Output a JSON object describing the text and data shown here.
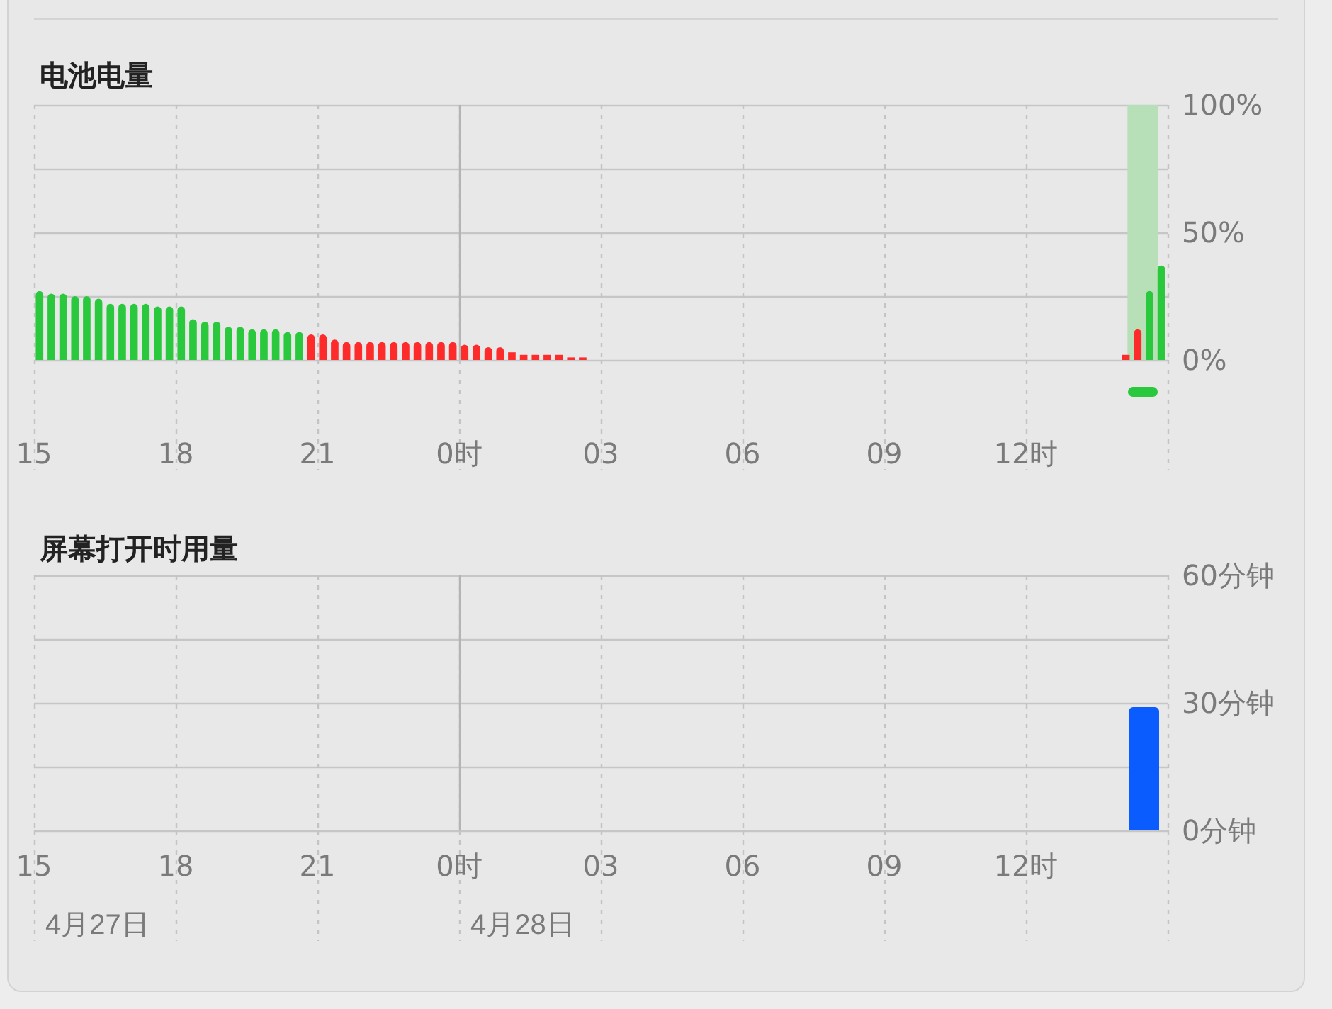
{
  "chart_data": [
    {
      "type": "bar",
      "title": "电池电量",
      "x": [
        "--04-27T15:07",
        "--04-27T15:22",
        "--04-27T15:37",
        "--04-27T15:52",
        "--04-27T16:07",
        "--04-27T16:22",
        "--04-27T16:37",
        "--04-27T16:52",
        "--04-27T17:07",
        "--04-27T17:22",
        "--04-27T17:37",
        "--04-27T17:52",
        "--04-27T18:07",
        "--04-27T18:22",
        "--04-27T18:37",
        "--04-27T18:52",
        "--04-27T19:07",
        "--04-27T19:22",
        "--04-27T19:37",
        "--04-27T19:52",
        "--04-27T20:07",
        "--04-27T20:22",
        "--04-27T20:37",
        "--04-27T20:52",
        "--04-27T21:07",
        "--04-27T21:22",
        "--04-27T21:37",
        "--04-27T21:52",
        "--04-27T22:07",
        "--04-27T22:22",
        "--04-27T22:37",
        "--04-27T22:52",
        "--04-27T23:07",
        "--04-27T23:22",
        "--04-27T23:37",
        "--04-27T23:52",
        "--04-28T00:07",
        "--04-28T00:22",
        "--04-28T00:37",
        "--04-28T00:52",
        "--04-28T01:07",
        "--04-28T01:22",
        "--04-28T01:37",
        "--04-28T01:52",
        "--04-28T02:07",
        "--04-28T02:22",
        "--04-28T02:37",
        "--04-28T14:07",
        "--04-28T14:22",
        "--04-28T14:37",
        "--04-28T14:52"
      ],
      "values": [
        27,
        26,
        26,
        25,
        25,
        24,
        22,
        22,
        22,
        22,
        21,
        21,
        21,
        16,
        15,
        15,
        13,
        13,
        12,
        12,
        12,
        11,
        11,
        10,
        10,
        8,
        7,
        7,
        7,
        7,
        7,
        7,
        7,
        7,
        7,
        7,
        6,
        6,
        5,
        5,
        3,
        2,
        2,
        2,
        2,
        1,
        1,
        2,
        12,
        27,
        37
      ],
      "colors": [
        "#2ac83c",
        "#2ac83c",
        "#2ac83c",
        "#2ac83c",
        "#2ac83c",
        "#2ac83c",
        "#2ac83c",
        "#2ac83c",
        "#2ac83c",
        "#2ac83c",
        "#2ac83c",
        "#2ac83c",
        "#2ac83c",
        "#2ac83c",
        "#2ac83c",
        "#2ac83c",
        "#2ac83c",
        "#2ac83c",
        "#2ac83c",
        "#2ac83c",
        "#2ac83c",
        "#2ac83c",
        "#2ac83c",
        "#fe2b2b",
        "#fe2b2b",
        "#fe2b2b",
        "#fe2b2b",
        "#fe2b2b",
        "#fe2b2b",
        "#fe2b2b",
        "#fe2b2b",
        "#fe2b2b",
        "#fe2b2b",
        "#fe2b2b",
        "#fe2b2b",
        "#fe2b2b",
        "#fe2b2b",
        "#fe2b2b",
        "#fe2b2b",
        "#fe2b2b",
        "#fe2b2b",
        "#fe2b2b",
        "#fe2b2b",
        "#fe2b2b",
        "#fe2b2b",
        "#fe2b2b",
        "#fe2b2b",
        "#fe2b2b",
        "#fe2b2b",
        "#2ac83c",
        "#2ac83c"
      ],
      "xlim": [
        "--04-27T15:00",
        "--04-28T15:00"
      ],
      "xticks": [
        {
          "value": "--04-27T15:00",
          "label": "15"
        },
        {
          "value": "--04-27T18:00",
          "label": "18"
        },
        {
          "value": "--04-27T21:00",
          "label": "21"
        },
        {
          "value": "--04-28T00:00",
          "label": "0时"
        },
        {
          "value": "--04-28T03:00",
          "label": "03"
        },
        {
          "value": "--04-28T06:00",
          "label": "06"
        },
        {
          "value": "--04-28T09:00",
          "label": "09"
        },
        {
          "value": "--04-28T12:00",
          "label": "12时"
        },
        {
          "value": "--04-28T15:00",
          "label": null
        }
      ],
      "ylim": [
        0,
        100
      ],
      "yticks": [
        {
          "value": 0,
          "label": "0%"
        },
        {
          "value": 25,
          "label": null
        },
        {
          "value": 50,
          "label": "50%"
        },
        {
          "value": 75,
          "label": null
        },
        {
          "value": 100,
          "label": "100%"
        }
      ],
      "grid": true,
      "ref_lines": [
        {
          "axis": "x",
          "value": "--04-28T00:00",
          "color": "#b4b4b4",
          "line_style": "solid"
        }
      ],
      "bands": [
        {
          "axis": "x",
          "from": "--04-28T14:09",
          "to": "--04-28T14:48",
          "color": "#b8e0b8"
        }
      ]
    },
    {
      "type": "bar",
      "title": "屏幕打开时用量",
      "x": [
        "--04-28T14:30"
      ],
      "values": [
        29
      ],
      "color": "#0a5cff",
      "xlim": [
        "--04-27T15:00",
        "--04-28T15:00"
      ],
      "xticks": [
        {
          "value": "--04-27T15:00",
          "label": "15"
        },
        {
          "value": "--04-27T18:00",
          "label": "18"
        },
        {
          "value": "--04-27T21:00",
          "label": "21"
        },
        {
          "value": "--04-28T00:00",
          "label": "0时"
        },
        {
          "value": "--04-28T03:00",
          "label": "03"
        },
        {
          "value": "--04-28T06:00",
          "label": "06"
        },
        {
          "value": "--04-28T09:00",
          "label": "09"
        },
        {
          "value": "--04-28T12:00",
          "label": "12时"
        },
        {
          "value": "--04-28T15:00",
          "label": null
        }
      ],
      "ylim": [
        0,
        60
      ],
      "yticks": [
        {
          "value": 0,
          "label": "0分钟"
        },
        {
          "value": 15,
          "label": null
        },
        {
          "value": 30,
          "label": "30分钟"
        },
        {
          "value": 45,
          "label": null
        },
        {
          "value": 60,
          "label": "60分钟"
        }
      ],
      "grid": true,
      "ref_lines": [
        {
          "axis": "x",
          "value": "--04-28T00:00",
          "color": "#b4b4b4",
          "line_style": "solid"
        }
      ],
      "annotations": [
        "4月27日",
        "4月28日"
      ]
    }
  ]
}
